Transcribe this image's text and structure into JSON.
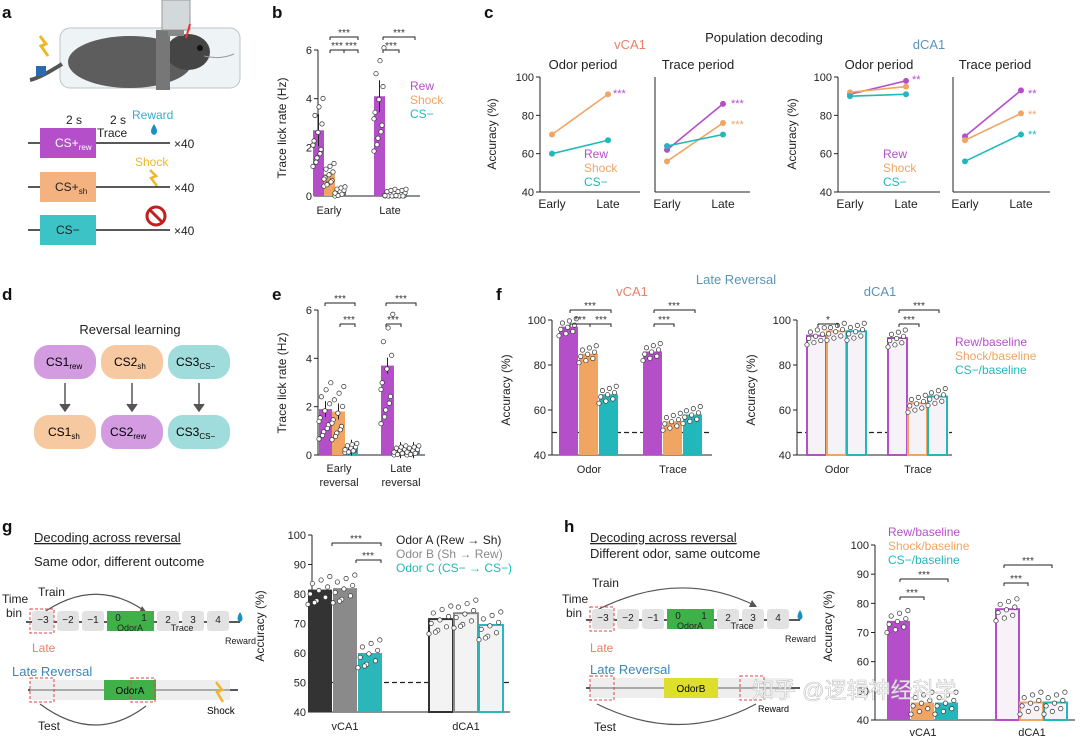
{
  "colors": {
    "rew": "#b44fc9",
    "shock": "#f0a562",
    "cs": "#22b8bb",
    "title_red": "#e8806a",
    "title_blue": "#5a93b9"
  },
  "panel_labels": {
    "a": "a",
    "b": "b",
    "c": "c",
    "d": "d",
    "e": "e",
    "f": "f",
    "g": "g",
    "h": "h"
  },
  "panel_a": {
    "dur1": "2 s",
    "dur2": "2 s",
    "trace": "Trace",
    "reward": "Reward",
    "shock": "Shock",
    "rows": [
      {
        "label": "CS+",
        "sub": "rew",
        "count": "×40"
      },
      {
        "label": "CS+",
        "sub": "sh",
        "count": "×40"
      },
      {
        "label": "CS−",
        "sub": "",
        "count": "×40"
      }
    ]
  },
  "panel_b": {
    "ylabel": "Trace lick rate (Hz)",
    "yticks": [
      "0",
      "2",
      "4",
      "6"
    ],
    "groups": [
      "Early",
      "Late"
    ],
    "legend": [
      "Rew",
      "Shock",
      "CS−"
    ],
    "sig": [
      "***",
      "***",
      "***",
      "***",
      "***"
    ]
  },
  "chart_data": [
    {
      "panel": "b",
      "type": "bar",
      "title": "",
      "ylabel": "Trace lick rate (Hz)",
      "ylim": [
        0,
        6
      ],
      "categories": [
        "Early",
        "Late"
      ],
      "series": [
        {
          "name": "Rew",
          "values": [
            2.7,
            4.1
          ]
        },
        {
          "name": "Shock",
          "values": [
            0.9,
            0.1
          ]
        },
        {
          "name": "CS−",
          "values": [
            0.2,
            0.1
          ]
        }
      ]
    },
    {
      "panel": "c",
      "type": "line",
      "title": "Population decoding",
      "ylabel": "Accuracy (%)",
      "ylim": [
        40,
        100
      ],
      "categories": [
        "Early",
        "Late"
      ],
      "subplots": [
        {
          "region": "vCA1",
          "period": "Odor period",
          "series": [
            {
              "name": "Rew",
              "values": [
                null,
                null
              ]
            },
            {
              "name": "Shock",
              "values": [
                70,
                91
              ]
            },
            {
              "name": "CS−",
              "values": [
                60,
                67
              ]
            }
          ]
        },
        {
          "region": "vCA1",
          "period": "Trace period",
          "series": [
            {
              "name": "Rew",
              "values": [
                62,
                86
              ]
            },
            {
              "name": "Shock",
              "values": [
                56,
                76
              ]
            },
            {
              "name": "CS−",
              "values": [
                64,
                70
              ]
            }
          ]
        },
        {
          "region": "dCA1",
          "period": "Odor period",
          "series": [
            {
              "name": "Rew",
              "values": [
                91,
                98
              ]
            },
            {
              "name": "Shock",
              "values": [
                92,
                95
              ]
            },
            {
              "name": "CS−",
              "values": [
                90,
                91
              ]
            }
          ]
        },
        {
          "region": "dCA1",
          "period": "Trace period",
          "series": [
            {
              "name": "Rew",
              "values": [
                69,
                93
              ]
            },
            {
              "name": "Shock",
              "values": [
                67,
                81
              ]
            },
            {
              "name": "CS−",
              "values": [
                56,
                70
              ]
            }
          ]
        }
      ]
    },
    {
      "panel": "e",
      "type": "bar",
      "ylabel": "Trace lick rate (Hz)",
      "ylim": [
        0,
        6
      ],
      "categories": [
        "Early reversal",
        "Late reversal"
      ],
      "series": [
        {
          "name": "Rew",
          "values": [
            1.9,
            3.7
          ]
        },
        {
          "name": "Shock",
          "values": [
            1.8,
            0.2
          ]
        },
        {
          "name": "CS−",
          "values": [
            0.3,
            0.2
          ]
        }
      ]
    },
    {
      "panel": "f",
      "type": "bar",
      "title": "Late Reversal",
      "ylabel": "Accuracy (%)",
      "ylim": [
        40,
        100
      ],
      "chance": 50,
      "subplots": [
        {
          "region": "vCA1",
          "categories": [
            "Odor",
            "Trace"
          ],
          "series": [
            {
              "name": "Rew",
              "values": [
                97,
                86
              ]
            },
            {
              "name": "Shock",
              "values": [
                85,
                55
              ]
            },
            {
              "name": "CS−",
              "values": [
                67,
                58
              ]
            }
          ]
        },
        {
          "region": "dCA1",
          "categories": [
            "Odor",
            "Trace"
          ],
          "series": [
            {
              "name": "Rew/baseline",
              "values": [
                93,
                92
              ]
            },
            {
              "name": "Shock/baseline",
              "values": [
                95,
                63
              ]
            },
            {
              "name": "CS−/baseline",
              "values": [
                95,
                66
              ]
            }
          ]
        }
      ]
    },
    {
      "panel": "g",
      "type": "bar",
      "ylabel": "Accuracy (%)",
      "ylim": [
        40,
        100
      ],
      "chance": 50,
      "categories": [
        "vCA1",
        "dCA1"
      ],
      "series": [
        {
          "name": "Odor A (Rew → Sh)",
          "values": [
            81.5,
            71.5
          ]
        },
        {
          "name": "Odor B (Sh → Rew)",
          "values": [
            82,
            73.5
          ]
        },
        {
          "name": "Odor C (CS− → CS−)",
          "values": [
            60,
            69.5
          ]
        }
      ]
    },
    {
      "panel": "h",
      "type": "bar",
      "ylabel": "Accuracy (%)",
      "ylim": [
        40,
        100
      ],
      "categories": [
        "vCA1",
        "dCA1"
      ],
      "series": [
        {
          "name": "Rew/baseline",
          "values": [
            74,
            78
          ]
        },
        {
          "name": "Shock/baseline",
          "values": [
            null,
            null
          ]
        },
        {
          "name": "CS−/baseline",
          "values": [
            null,
            null
          ]
        }
      ]
    }
  ],
  "panel_c": {
    "title": "Population decoding",
    "regions": [
      "vCA1",
      "dCA1"
    ],
    "periods": [
      "Odor period",
      "Trace period",
      "Odor period",
      "Trace period"
    ],
    "ylabel": "Accuracy (%)",
    "yticks": [
      "40",
      "60",
      "80",
      "100"
    ],
    "xticks": [
      "Early",
      "Late"
    ],
    "legend": [
      "Rew",
      "Shock",
      "CS−"
    ],
    "sig_labels": [
      "***",
      "***",
      "***",
      "**",
      "**",
      "***",
      "**",
      "**"
    ]
  },
  "panel_d": {
    "title": "Reversal learning",
    "top": [
      {
        "l": "CS1",
        "s": "rew"
      },
      {
        "l": "CS2",
        "s": "sh"
      },
      {
        "l": "CS3",
        "s": "CS−"
      }
    ],
    "bottom": [
      {
        "l": "CS1",
        "s": "sh"
      },
      {
        "l": "CS2",
        "s": "rew"
      },
      {
        "l": "CS3",
        "s": "CS−"
      }
    ]
  },
  "panel_e": {
    "ylabel": "Trace lick rate (Hz)",
    "yticks": [
      "0",
      "2",
      "4",
      "6"
    ],
    "groups": [
      [
        "Early",
        "reversal"
      ],
      [
        "Late",
        "reversal"
      ]
    ],
    "sig": "***"
  },
  "panel_f": {
    "title": "Late Reversal",
    "regions": [
      "vCA1",
      "dCA1"
    ],
    "ylabel": "Accuracy (%)",
    "yticks": [
      "40",
      "60",
      "80",
      "100"
    ],
    "groups": [
      "Odor",
      "Trace"
    ],
    "legend": [
      "Rew/baseline",
      "Shock/baseline",
      "CS−/baseline"
    ],
    "sig1": "***",
    "sig2": "*"
  },
  "panel_g": {
    "title": "Decoding across reversal",
    "subtitle": "Same odor, different outcome",
    "train": "Train",
    "timebin": "Time bin",
    "bins": [
      "−3",
      "−2",
      "−1",
      "0",
      "1",
      "2",
      "3",
      "4"
    ],
    "odor": "OdorA",
    "trace": "Trace",
    "reward": "Reward",
    "late": "Late",
    "late_rev": "Late Reversal",
    "test": "Test",
    "shock": "Shock",
    "ylabel": "Accuracy (%)",
    "yticks": [
      "40",
      "50",
      "60",
      "70",
      "80",
      "90",
      "100"
    ],
    "groups": [
      "vCA1",
      "dCA1"
    ],
    "legend": [
      "Odor A (Rew → Sh)",
      "Odor B (Sh → Rew)",
      "Odor C (CS− → CS−)"
    ],
    "sig": "***"
  },
  "panel_h": {
    "title": "Decoding across reversal",
    "subtitle": "Different odor, same outcome",
    "train": "Train",
    "timebin": "Time bin",
    "bins": [
      "−3",
      "−2",
      "−1",
      "0",
      "1",
      "2",
      "3",
      "4"
    ],
    "odorA": "OdorA",
    "odorB": "OdorB",
    "trace": "Trace",
    "reward": "Reward",
    "late": "Late",
    "late_rev": "Late Reversal",
    "test": "Test",
    "ylabel": "Accuracy (%)",
    "yticks": [
      "40",
      "50",
      "60",
      "70",
      "80",
      "90",
      "100"
    ],
    "groups": [
      "vCA1",
      "dCA1"
    ],
    "legend": [
      "Rew/baseline",
      "Shock/baseline",
      "CS−/baseline"
    ],
    "sig": "***"
  },
  "watermark": "知乎 @逻辑神经科学"
}
